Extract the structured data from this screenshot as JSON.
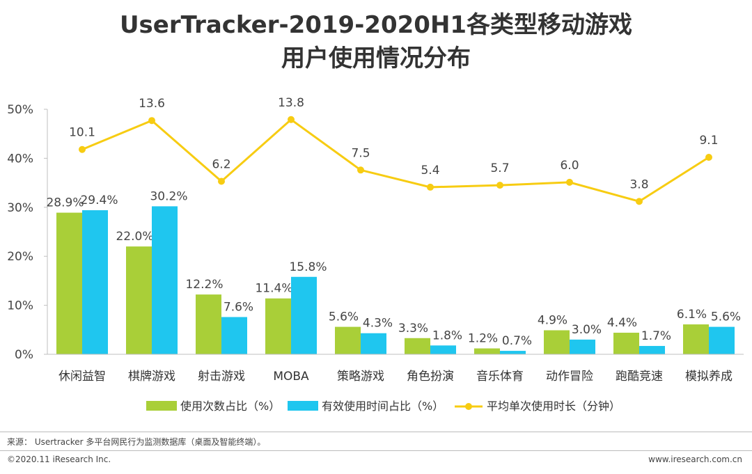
{
  "header": {
    "title_line1": "UserTracker-2019-2020H1各类型移动游戏",
    "title_line2": "用户使用情况分布"
  },
  "chart_data": {
    "type": "bar",
    "categories": [
      "休闲益智",
      "棋牌游戏",
      "射击游戏",
      "MOBA",
      "策略游戏",
      "角色扮演",
      "音乐体育",
      "动作冒险",
      "跑酷竞速",
      "模拟养成"
    ],
    "series": [
      {
        "name": "使用次数占比（%）",
        "type": "bar",
        "color": "#a9cf38",
        "values": [
          28.9,
          22.0,
          12.2,
          11.4,
          5.6,
          3.3,
          1.2,
          4.9,
          4.4,
          6.1
        ],
        "labels": [
          "28.9%",
          "22.0%",
          "12.2%",
          "11.4%",
          "5.6%",
          "3.3%",
          "1.2%",
          "4.9%",
          "4.4%",
          "6.1%"
        ]
      },
      {
        "name": "有效使用时间占比（%）",
        "type": "bar",
        "color": "#1fc6ef",
        "values": [
          29.4,
          30.2,
          7.6,
          15.8,
          4.3,
          1.8,
          0.7,
          3.0,
          1.7,
          5.6
        ],
        "labels": [
          "29.4%",
          "30.2%",
          "7.6%",
          "15.8%",
          "4.3%",
          "1.8%",
          "0.7%",
          "3.0%",
          "1.7%",
          "5.6%"
        ]
      },
      {
        "name": "平均单次使用时长（分钟）",
        "type": "line",
        "color": "#f7cc12",
        "values": [
          10.1,
          13.6,
          6.2,
          13.8,
          7.5,
          5.4,
          5.7,
          6.0,
          3.8,
          9.1
        ],
        "labels": [
          "10.1",
          "13.6",
          "6.2",
          "13.8",
          "7.5",
          "5.4",
          "5.7",
          "6.0",
          "3.8",
          "9.1"
        ]
      }
    ],
    "y_ticks": [
      "0%",
      "10%",
      "20%",
      "30%",
      "40%",
      "50%"
    ],
    "ylim": [
      0,
      50
    ],
    "line_position_pct": [
      41.8,
      47.7,
      35.3,
      47.9,
      37.6,
      34.1,
      34.5,
      35.1,
      31.2,
      40.2
    ],
    "legend_position": "bottom"
  },
  "footer": {
    "source": "来源： Usertracker 多平台网民行为监测数据库（桌面及智能终端）。",
    "copyright": "©2020.11 iResearch Inc.",
    "website": "www.iresearch.com.cn"
  }
}
